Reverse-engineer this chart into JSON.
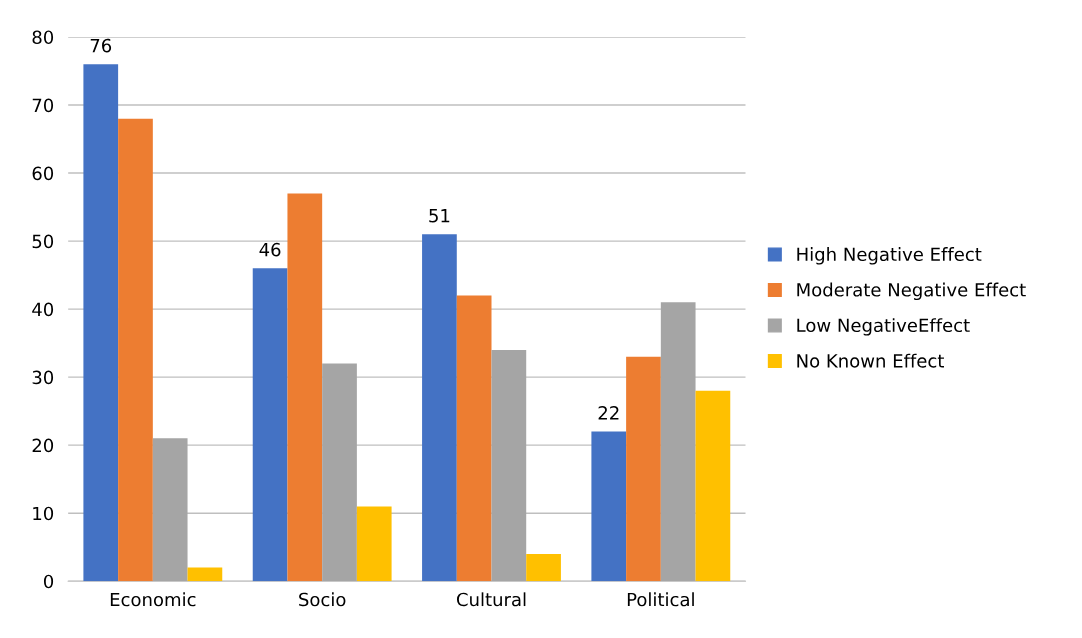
{
  "chart_data": {
    "type": "bar",
    "categories": [
      "Economic",
      "Socio",
      "Cultural",
      "Political"
    ],
    "series": [
      {
        "name": "High Negative Effect",
        "color": "#4472c4",
        "values": [
          76,
          46,
          51,
          22
        ],
        "value_labels": [
          "76",
          "46",
          "51",
          "22"
        ]
      },
      {
        "name": "Moderate Negative Effect",
        "color": "#ed7d31",
        "values": [
          68,
          57,
          42,
          33
        ]
      },
      {
        "name": "Low NegativeEffect",
        "color": "#a5a5a5",
        "values": [
          21,
          32,
          34,
          41
        ]
      },
      {
        "name": "No Known Effect",
        "color": "#ffc000",
        "values": [
          2,
          11,
          4,
          28
        ]
      }
    ],
    "ylim": [
      0,
      80
    ],
    "yticks": [
      0,
      10,
      20,
      30,
      40,
      50,
      60,
      70,
      80
    ],
    "grid": "y",
    "legend": "right"
  }
}
